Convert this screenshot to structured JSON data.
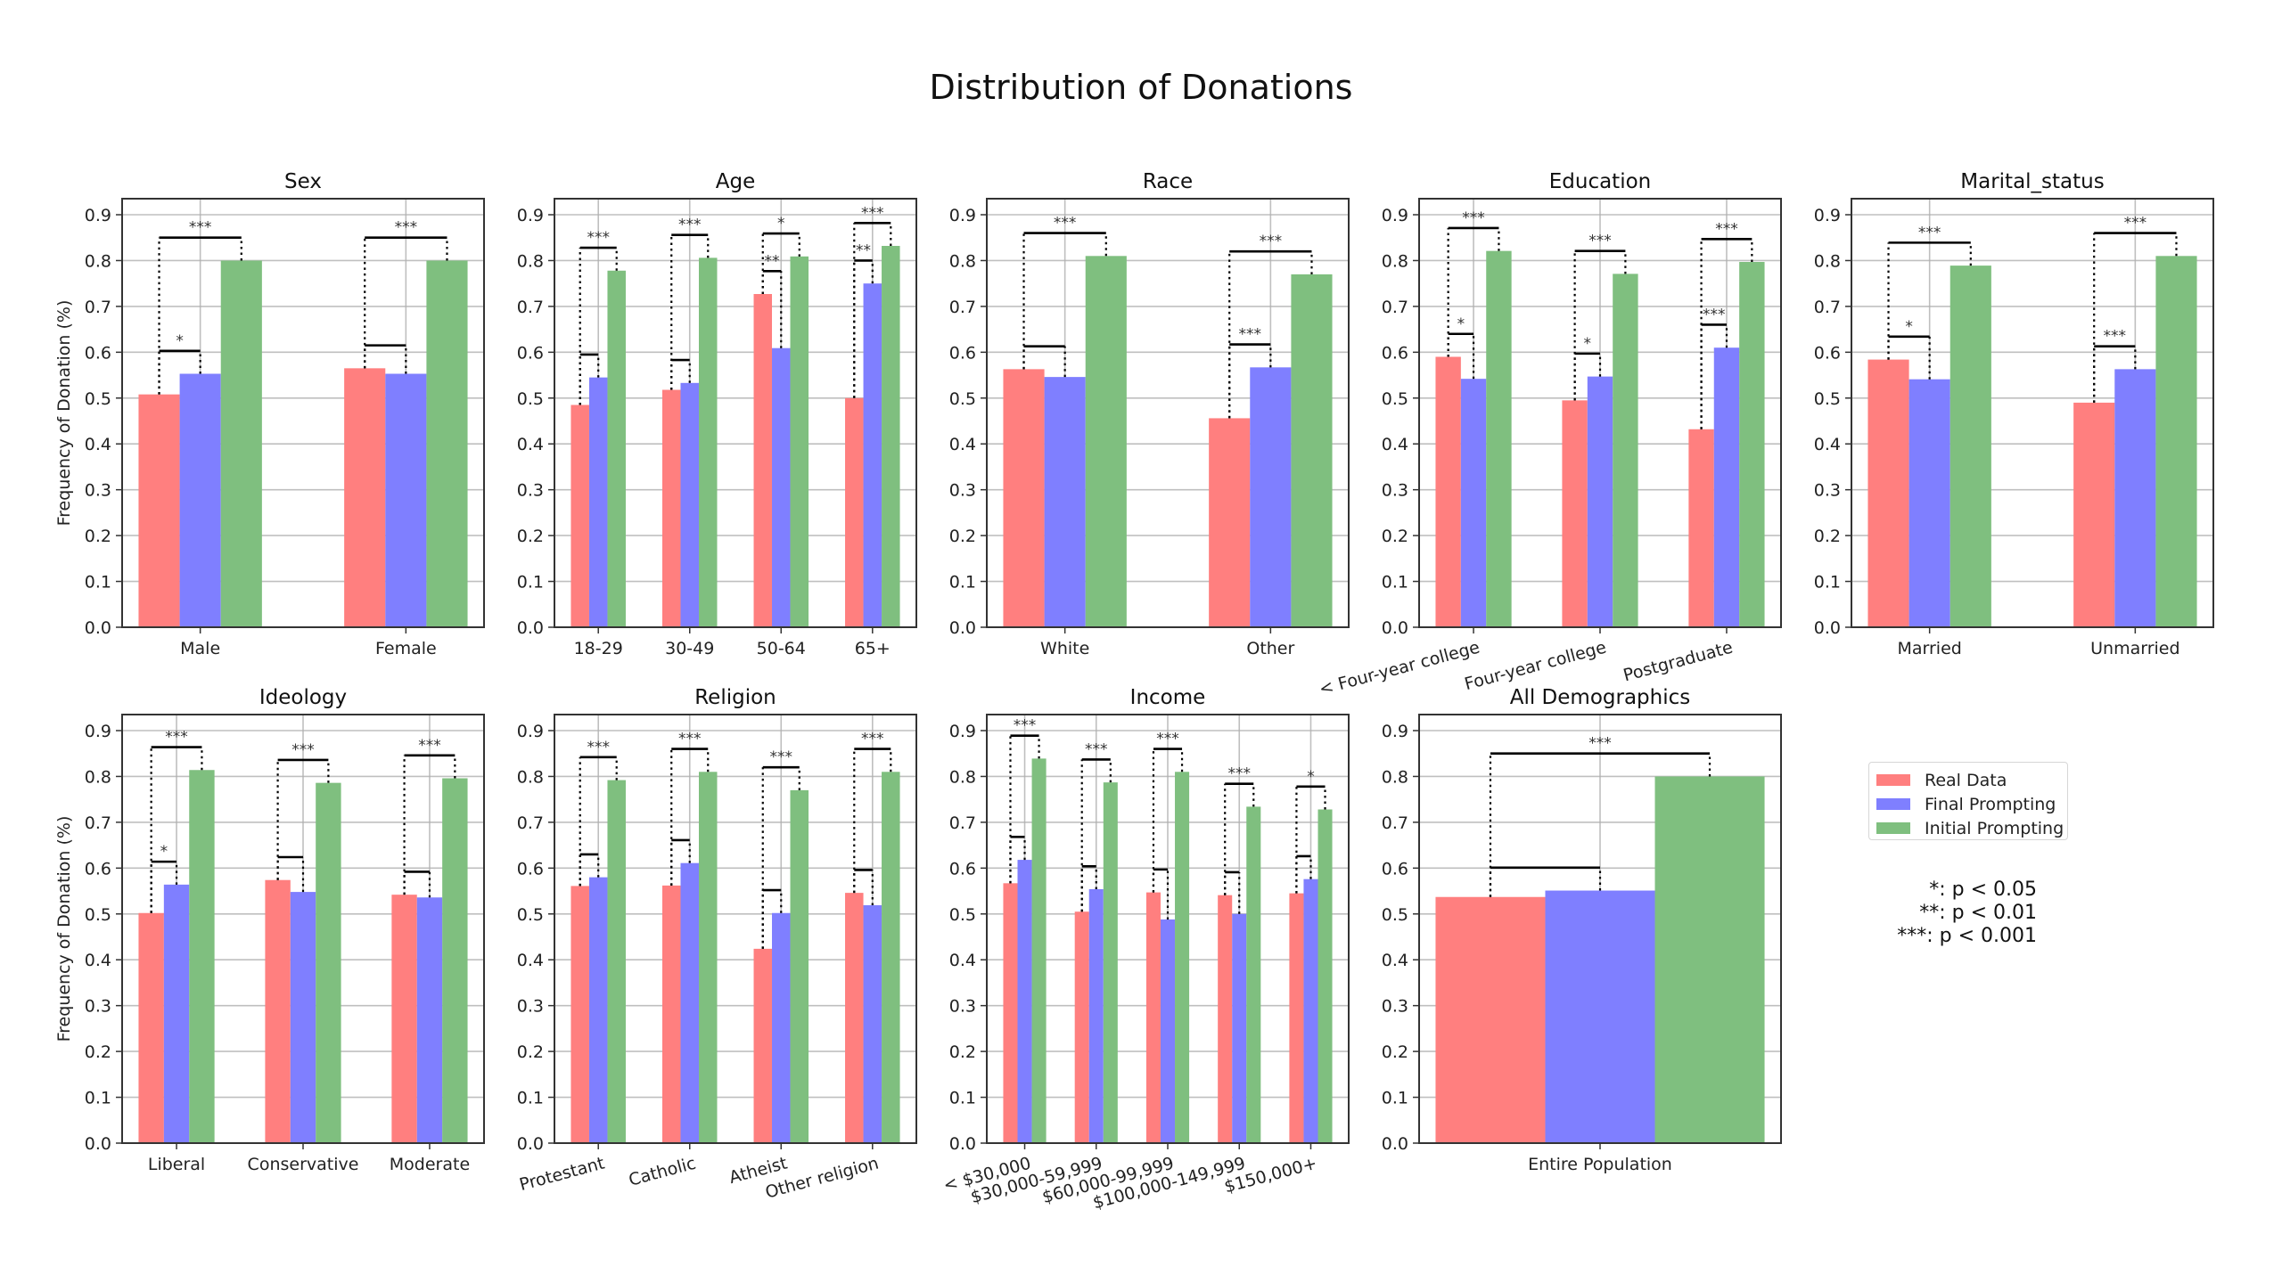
{
  "chart_data": {
    "title": "Distribution of Donations",
    "type": "bar",
    "ylabel": "Frequency of Donation (%)",
    "ylim": [
      0,
      0.935
    ],
    "yticks": [
      "0.0",
      "0.1",
      "0.2",
      "0.3",
      "0.4",
      "0.5",
      "0.6",
      "0.7",
      "0.8",
      "0.9"
    ],
    "grid": true,
    "series_names": [
      "Real Data",
      "Final Prompting",
      "Initial Prompting"
    ],
    "colors": {
      "real": "#ff7f7f",
      "final": "#7f7fff",
      "initial": "#7fbf7f"
    },
    "legend_position": "right",
    "significance_legend": [
      "*: p < 0.05",
      "**: p < 0.01",
      "***: p < 0.001"
    ],
    "panels": [
      {
        "title": "Sex",
        "categories": [
          "Male",
          "Female"
        ],
        "rotate_labels": false,
        "series": [
          {
            "name": "Real Data",
            "values": [
              0.508,
              0.565
            ]
          },
          {
            "name": "Final Prompting",
            "values": [
              0.553,
              0.553
            ]
          },
          {
            "name": "Initial Prompting",
            "values": [
              0.8,
              0.8
            ]
          }
        ],
        "sig_real_vs_final": [
          "*",
          ""
        ],
        "sig_real_vs_initial": [
          "***",
          "***"
        ]
      },
      {
        "title": "Age",
        "categories": [
          "18-29",
          "30-49",
          "50-64",
          "65+"
        ],
        "rotate_labels": false,
        "series": [
          {
            "name": "Real Data",
            "values": [
              0.485,
              0.518,
              0.727,
              0.5
            ]
          },
          {
            "name": "Final Prompting",
            "values": [
              0.545,
              0.533,
              0.609,
              0.75
            ]
          },
          {
            "name": "Initial Prompting",
            "values": [
              0.778,
              0.806,
              0.809,
              0.832
            ]
          }
        ],
        "sig_real_vs_final": [
          "",
          "",
          "**",
          "**"
        ],
        "sig_real_vs_initial": [
          "***",
          "***",
          "*",
          "***"
        ]
      },
      {
        "title": "Race",
        "categories": [
          "White",
          "Other"
        ],
        "rotate_labels": false,
        "series": [
          {
            "name": "Real Data",
            "values": [
              0.563,
              0.456
            ]
          },
          {
            "name": "Final Prompting",
            "values": [
              0.546,
              0.567
            ]
          },
          {
            "name": "Initial Prompting",
            "values": [
              0.81,
              0.77
            ]
          }
        ],
        "sig_real_vs_final": [
          "",
          "***"
        ],
        "sig_real_vs_initial": [
          "***",
          "***"
        ]
      },
      {
        "title": "Education",
        "categories": [
          "< Four-year college",
          "Four-year college",
          "Postgraduate"
        ],
        "rotate_labels": true,
        "series": [
          {
            "name": "Real Data",
            "values": [
              0.59,
              0.495,
              0.432
            ]
          },
          {
            "name": "Final Prompting",
            "values": [
              0.542,
              0.547,
              0.61
            ]
          },
          {
            "name": "Initial Prompting",
            "values": [
              0.821,
              0.771,
              0.797
            ]
          }
        ],
        "sig_real_vs_final": [
          "*",
          "*",
          "***"
        ],
        "sig_real_vs_initial": [
          "***",
          "***",
          "***"
        ]
      },
      {
        "title": "Marital_status",
        "categories": [
          "Married",
          "Unmarried"
        ],
        "rotate_labels": false,
        "series": [
          {
            "name": "Real Data",
            "values": [
              0.584,
              0.49
            ]
          },
          {
            "name": "Final Prompting",
            "values": [
              0.541,
              0.563
            ]
          },
          {
            "name": "Initial Prompting",
            "values": [
              0.789,
              0.81
            ]
          }
        ],
        "sig_real_vs_final": [
          "*",
          "***"
        ],
        "sig_real_vs_initial": [
          "***",
          "***"
        ]
      },
      {
        "title": "Ideology",
        "categories": [
          "Liberal",
          "Conservative",
          "Moderate"
        ],
        "rotate_labels": false,
        "series": [
          {
            "name": "Real Data",
            "values": [
              0.502,
              0.574,
              0.542
            ]
          },
          {
            "name": "Final Prompting",
            "values": [
              0.564,
              0.548,
              0.536
            ]
          },
          {
            "name": "Initial Prompting",
            "values": [
              0.814,
              0.786,
              0.796
            ]
          }
        ],
        "sig_real_vs_final": [
          "*",
          "",
          ""
        ],
        "sig_real_vs_initial": [
          "***",
          "***",
          "***"
        ]
      },
      {
        "title": "Religion",
        "categories": [
          "Protestant",
          "Catholic",
          "Atheist",
          "Other religion"
        ],
        "rotate_labels": true,
        "series": [
          {
            "name": "Real Data",
            "values": [
              0.561,
              0.562,
              0.424,
              0.546
            ]
          },
          {
            "name": "Final Prompting",
            "values": [
              0.58,
              0.611,
              0.502,
              0.519
            ]
          },
          {
            "name": "Initial Prompting",
            "values": [
              0.792,
              0.81,
              0.77,
              0.81
            ]
          }
        ],
        "sig_real_vs_final": [
          "",
          "",
          "",
          ""
        ],
        "sig_real_vs_initial": [
          "***",
          "***",
          "***",
          "***"
        ]
      },
      {
        "title": "Income",
        "categories": [
          "< $30,000",
          "$30,000-59,999",
          "$60,000-99,999",
          "$100,000-149,999",
          "$150,000+"
        ],
        "rotate_labels": true,
        "series": [
          {
            "name": "Real Data",
            "values": [
              0.567,
              0.505,
              0.547,
              0.541,
              0.545
            ]
          },
          {
            "name": "Final Prompting",
            "values": [
              0.618,
              0.554,
              0.488,
              0.5,
              0.576
            ]
          },
          {
            "name": "Initial Prompting",
            "values": [
              0.839,
              0.787,
              0.81,
              0.734,
              0.728
            ]
          }
        ],
        "sig_real_vs_final": [
          "",
          "",
          "",
          "",
          ""
        ],
        "sig_real_vs_initial": [
          "***",
          "***",
          "***",
          "***",
          "*"
        ]
      },
      {
        "title": "All Demographics",
        "categories": [
          "Entire Population"
        ],
        "rotate_labels": false,
        "series": [
          {
            "name": "Real Data",
            "values": [
              0.537
            ]
          },
          {
            "name": "Final Prompting",
            "values": [
              0.551
            ]
          },
          {
            "name": "Initial Prompting",
            "values": [
              0.8
            ]
          }
        ],
        "sig_real_vs_final": [
          ""
        ],
        "sig_real_vs_initial": [
          "***"
        ]
      }
    ]
  }
}
